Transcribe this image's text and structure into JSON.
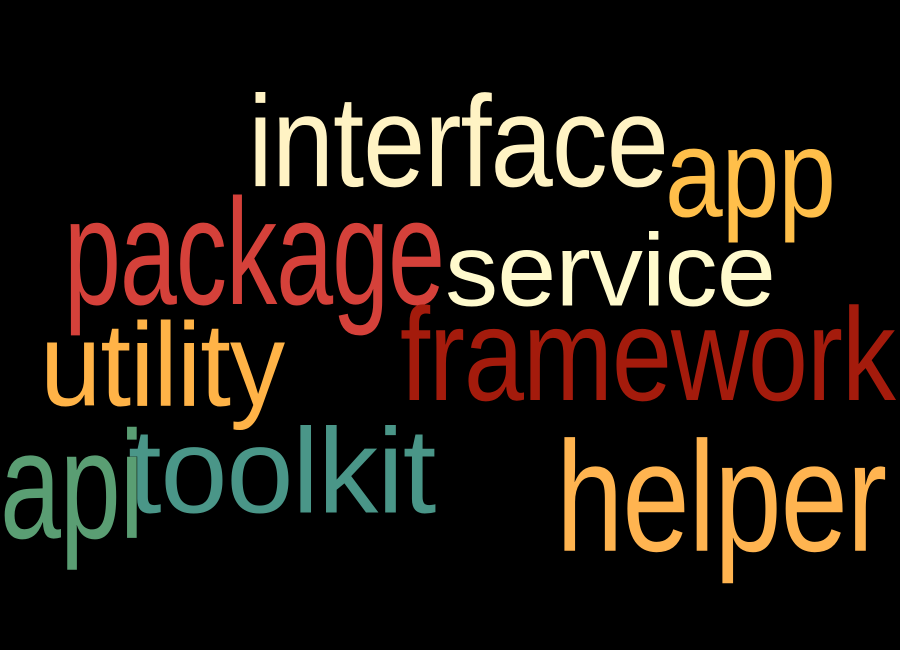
{
  "background": "#000000",
  "words": [
    {
      "id": "interface",
      "text": "interface",
      "color": "#fff3c4"
    },
    {
      "id": "app",
      "text": "app",
      "color": "#ffbf4a"
    },
    {
      "id": "package",
      "text": "package",
      "color": "#d5413a"
    },
    {
      "id": "service",
      "text": "service",
      "color": "#fffacd"
    },
    {
      "id": "utility",
      "text": "utility",
      "color": "#ffb347"
    },
    {
      "id": "framework",
      "text": "framework",
      "color": "#a41b0c"
    },
    {
      "id": "api",
      "text": "api",
      "color": "#5a9e73"
    },
    {
      "id": "toolkit",
      "text": "toolkit",
      "color": "#4a9688"
    },
    {
      "id": "helper",
      "text": "helper",
      "color": "#ffb450"
    }
  ]
}
